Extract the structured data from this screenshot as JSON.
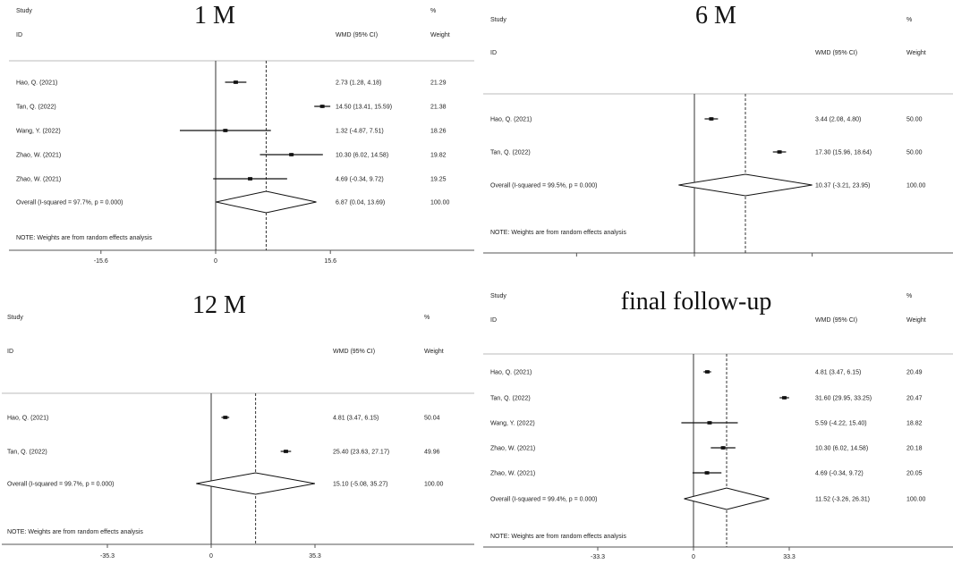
{
  "chart_data": [
    {
      "type": "forest",
      "title": "1 M",
      "header": {
        "study": "Study",
        "id": "ID",
        "pct": "%",
        "wmd": "WMD (95% CI)",
        "weight": "Weight"
      },
      "studies": [
        {
          "name": "Hao, Q. (2021)",
          "est": 2.73,
          "lo": 1.28,
          "hi": 4.18,
          "ci_text": "2.73 (1.28, 4.18)",
          "weight": "21.29"
        },
        {
          "name": "Tan, Q. (2022)",
          "est": 14.5,
          "lo": 13.41,
          "hi": 15.59,
          "ci_text": "14.50 (13.41, 15.59)",
          "weight": "21.38"
        },
        {
          "name": "Wang, Y. (2022)",
          "est": 1.32,
          "lo": -4.87,
          "hi": 7.51,
          "ci_text": "1.32 (-4.87, 7.51)",
          "weight": "18.26"
        },
        {
          "name": "Zhao, W. (2021)",
          "est": 10.3,
          "lo": 6.02,
          "hi": 14.58,
          "ci_text": "10.30 (6.02, 14.58)",
          "weight": "19.82"
        },
        {
          "name": "Zhao, W. (2021)",
          "est": 4.69,
          "lo": -0.34,
          "hi": 9.72,
          "ci_text": "4.69 (-0.34, 9.72)",
          "weight": "19.25"
        }
      ],
      "overall": {
        "label": "Overall  (I-squared = 97.7%, p = 0.000)",
        "est": 6.87,
        "lo": 0.04,
        "hi": 13.69,
        "ci_text": "6.87 (0.04, 13.69)",
        "weight": "100.00"
      },
      "note": "NOTE: Weights are from random effects analysis",
      "ticks": [
        "-15.6",
        "0",
        "15.6"
      ],
      "xlim": [
        -15.6,
        15.6
      ]
    },
    {
      "type": "forest",
      "title": "6 M",
      "header": {
        "study": "Study",
        "id": "ID",
        "pct": "%",
        "wmd": "WMD (95% CI)",
        "weight": "Weight"
      },
      "studies": [
        {
          "name": "Hao, Q. (2021)",
          "est": 3.44,
          "lo": 2.08,
          "hi": 4.8,
          "ci_text": "3.44 (2.08, 4.80)",
          "weight": "50.00"
        },
        {
          "name": "Tan, Q. (2022)",
          "est": 17.3,
          "lo": 15.96,
          "hi": 18.64,
          "ci_text": "17.30 (15.96, 18.64)",
          "weight": "50.00"
        }
      ],
      "overall": {
        "label": "Overall  (I-squared = 99.5%, p = 0.000)",
        "est": 10.37,
        "lo": -3.21,
        "hi": 23.95,
        "ci_text": "10.37 (-3.21, 23.95)",
        "weight": "100.00"
      },
      "note": "NOTE: Weights are from random effects analysis",
      "ticks": [],
      "xlim": [
        -23.95,
        23.95
      ]
    },
    {
      "type": "forest",
      "title": "12 M",
      "header": {
        "study": "Study",
        "id": "ID",
        "pct": "%",
        "wmd": "WMD (95% CI)",
        "weight": "Weight"
      },
      "studies": [
        {
          "name": "Hao, Q. (2021)",
          "est": 4.81,
          "lo": 3.47,
          "hi": 6.15,
          "ci_text": "4.81 (3.47, 6.15)",
          "weight": "50.04"
        },
        {
          "name": "Tan, Q. (2022)",
          "est": 25.4,
          "lo": 23.63,
          "hi": 27.17,
          "ci_text": "25.40 (23.63, 27.17)",
          "weight": "49.96"
        }
      ],
      "overall": {
        "label": "Overall  (I-squared = 99.7%, p = 0.000)",
        "est": 15.1,
        "lo": -5.08,
        "hi": 35.27,
        "ci_text": "15.10 (-5.08, 35.27)",
        "weight": "100.00"
      },
      "note": "NOTE: Weights are from random effects analysis",
      "ticks": [
        "-35.3",
        "0",
        "35.3"
      ],
      "xlim": [
        -35.3,
        35.3
      ]
    },
    {
      "type": "forest",
      "title": "final follow-up",
      "header": {
        "study": "Study",
        "id": "ID",
        "pct": "%",
        "wmd": "WMD (95% CI)",
        "weight": "Weight"
      },
      "studies": [
        {
          "name": "Hao, Q. (2021)",
          "est": 4.81,
          "lo": 3.47,
          "hi": 6.15,
          "ci_text": "4.81 (3.47, 6.15)",
          "weight": "20.49"
        },
        {
          "name": "Tan, Q. (2022)",
          "est": 31.6,
          "lo": 29.95,
          "hi": 33.25,
          "ci_text": "31.60 (29.95, 33.25)",
          "weight": "20.47"
        },
        {
          "name": "Wang, Y. (2022)",
          "est": 5.59,
          "lo": -4.22,
          "hi": 15.4,
          "ci_text": "5.59 (-4.22, 15.40)",
          "weight": "18.82"
        },
        {
          "name": "Zhao, W. (2021)",
          "est": 10.3,
          "lo": 6.02,
          "hi": 14.58,
          "ci_text": "10.30 (6.02, 14.58)",
          "weight": "20.18"
        },
        {
          "name": "Zhao, W. (2021)",
          "est": 4.69,
          "lo": -0.34,
          "hi": 9.72,
          "ci_text": "4.69 (-0.34, 9.72)",
          "weight": "20.05"
        }
      ],
      "overall": {
        "label": "Overall  (I-squared = 99.4%, p = 0.000)",
        "est": 11.52,
        "lo": -3.26,
        "hi": 26.31,
        "ci_text": "11.52 (-3.26, 26.31)",
        "weight": "100.00"
      },
      "note": "NOTE: Weights are from random effects analysis",
      "ticks": [
        "-33.3",
        "0",
        "33.3"
      ],
      "xlim": [
        -33.3,
        33.3
      ]
    }
  ]
}
